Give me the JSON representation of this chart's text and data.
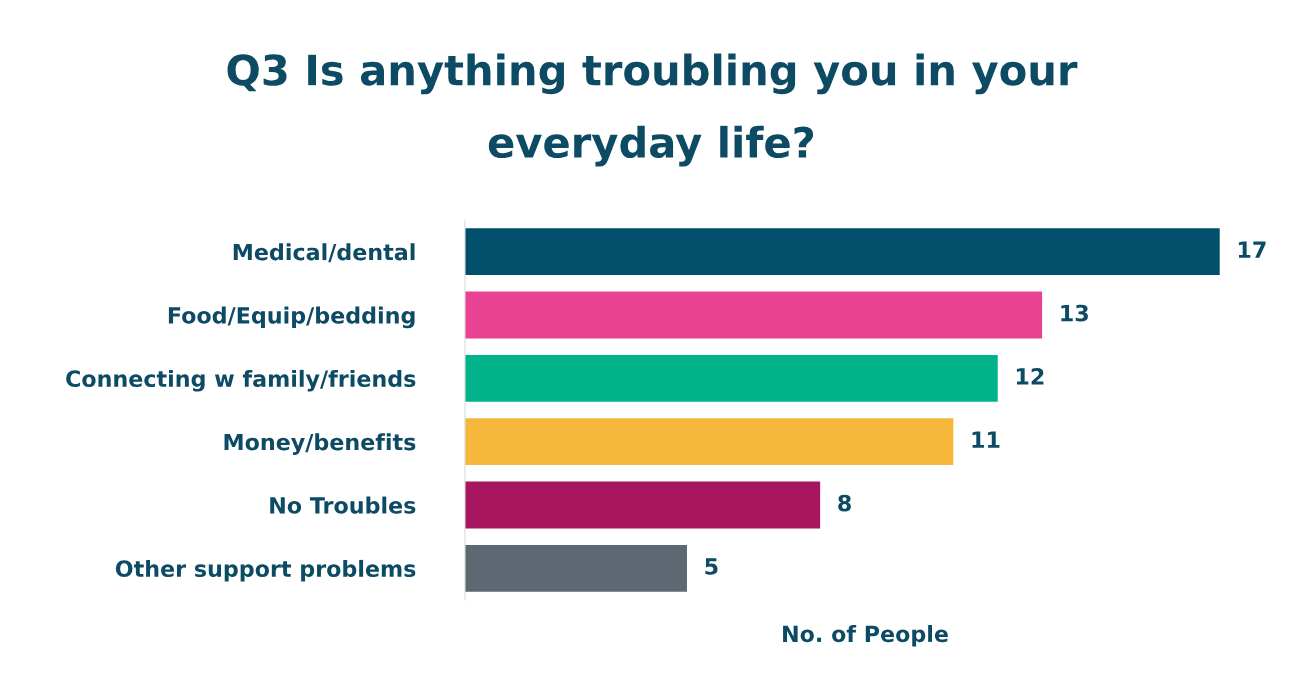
{
  "chart_data": {
    "type": "bar",
    "orientation": "horizontal",
    "title": "Q3 Is anything troubling you in your\neveryday life?",
    "xlabel": "No. of People",
    "categories": [
      "Medical/dental",
      "Food/Equip/bedding",
      "Connecting w family/friends",
      "Money/benefits",
      "No Troubles",
      "Other support problems"
    ],
    "values": [
      17,
      13,
      12,
      11,
      8,
      5
    ],
    "colors": [
      "#00506b",
      "#e84393",
      "#00b38a",
      "#f7b73b",
      "#a8165f",
      "#5e6872"
    ],
    "data_labels": true,
    "grid": false,
    "legend": false,
    "tick_labels": "y"
  }
}
